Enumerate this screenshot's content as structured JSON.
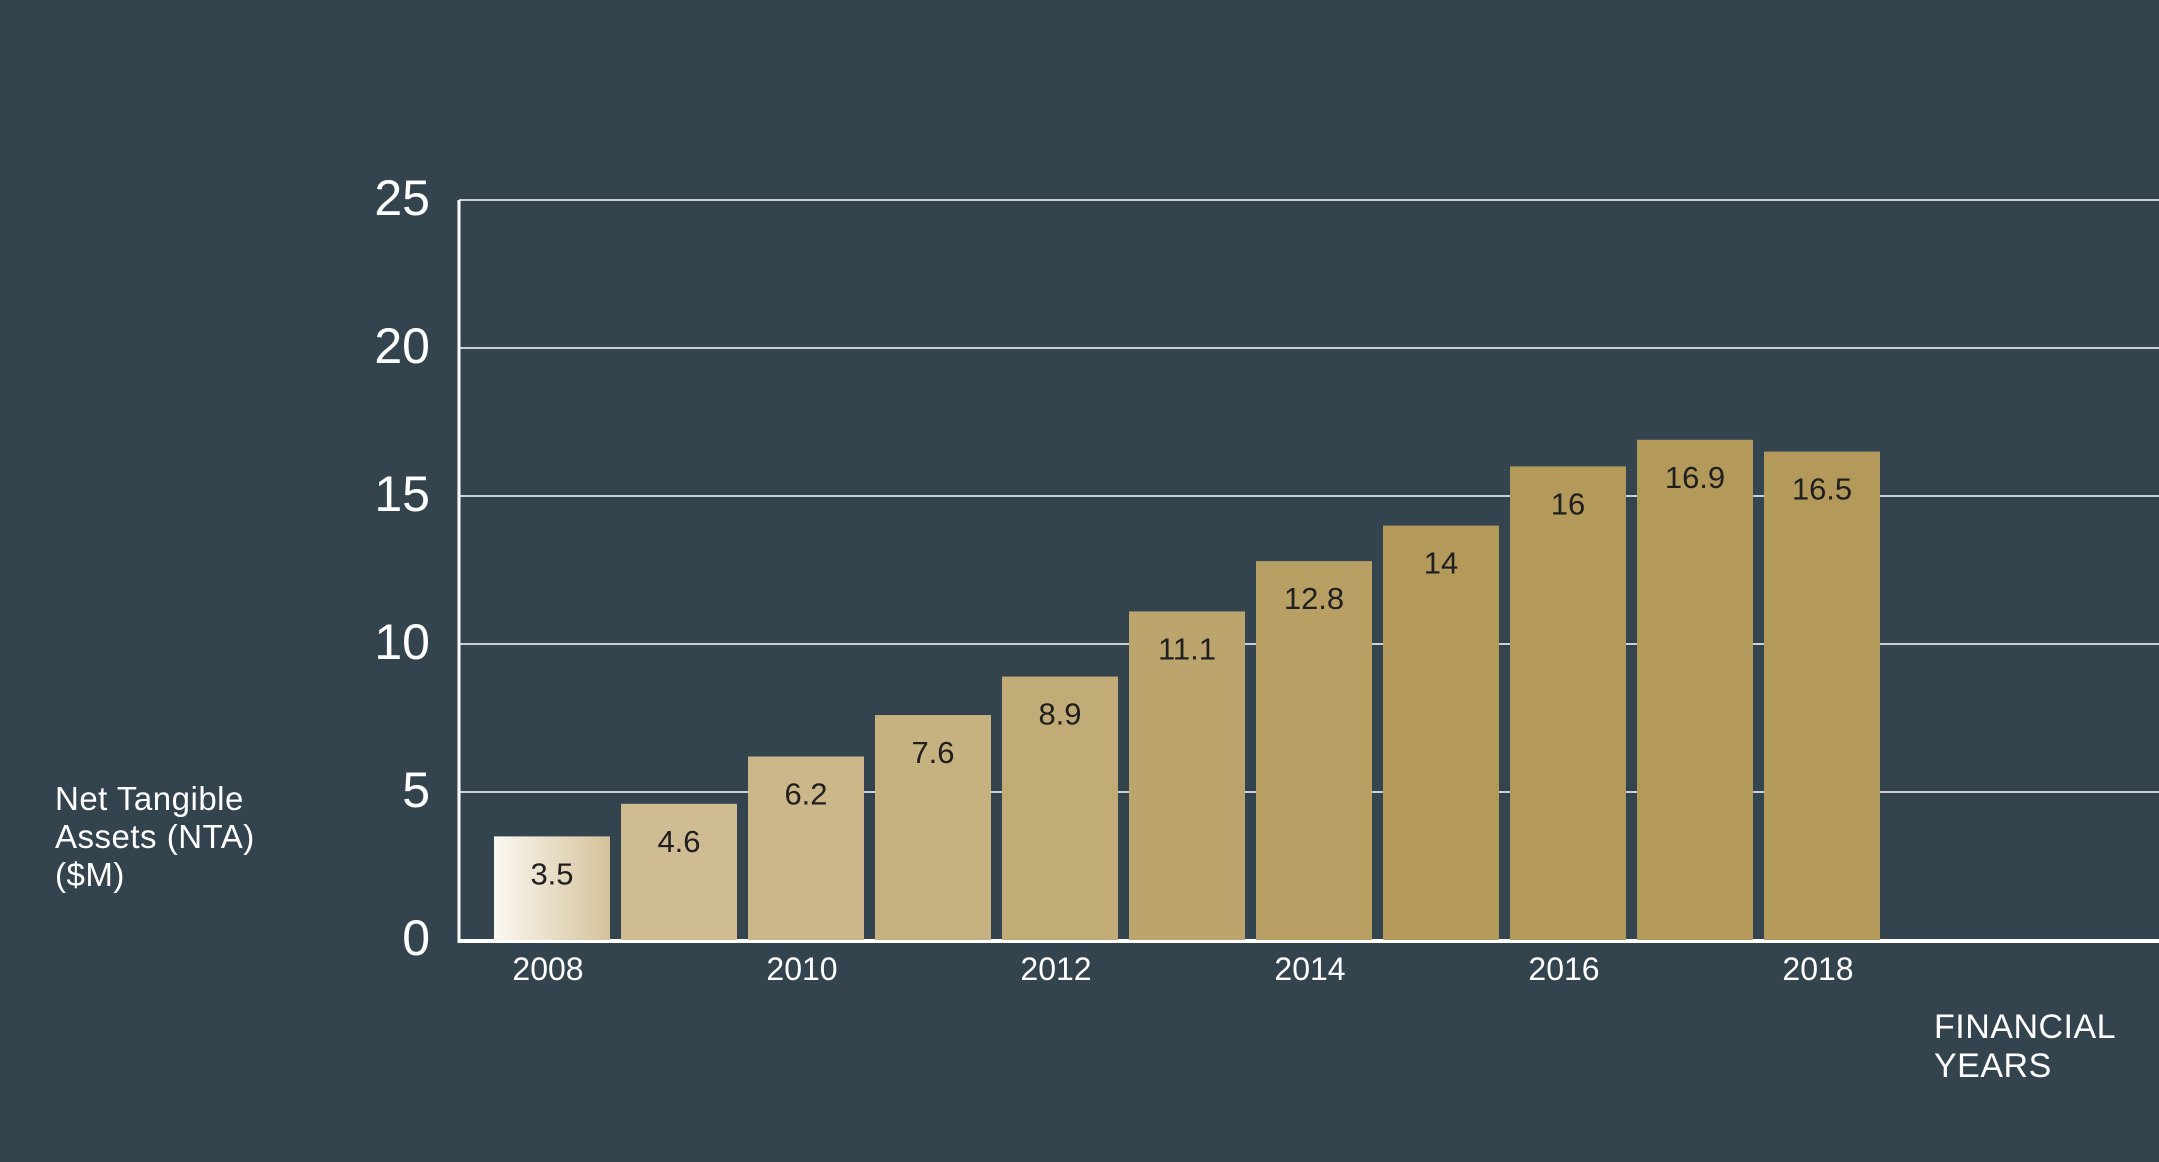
{
  "chart_data": {
    "type": "bar",
    "categories": [
      "2008",
      "2009",
      "2010",
      "2011",
      "2012",
      "2013",
      "2014",
      "2015",
      "2016",
      "2017",
      "2018"
    ],
    "values": [
      3.5,
      4.6,
      6.2,
      7.6,
      8.9,
      11.1,
      12.8,
      14,
      16,
      16.9,
      16.5
    ],
    "data_labels": [
      "3.5",
      "4.6",
      "6.2",
      "7.6",
      "8.9",
      "11.1",
      "12.8",
      "14",
      "16",
      "16.9",
      "16.5"
    ],
    "x_tick_labels": [
      "2008",
      "",
      "2010",
      "",
      "2012",
      "",
      "2014",
      "",
      "2016",
      "",
      "2018"
    ],
    "y_ticks": [
      0,
      5,
      10,
      15,
      20,
      25
    ],
    "ylim": [
      0,
      25
    ],
    "grid": true,
    "ylabel_lines": [
      "Net Tangible",
      "Assets (NTA)",
      "($M)"
    ],
    "xlabel_lines": [
      "FINANCIAL",
      "YEARS"
    ],
    "colors": {
      "background": "#34444f",
      "gridline": "#ffffff",
      "bar_gradient_start": "#fbf8f1",
      "bar_light": "#d4c29b",
      "bar_dark": "#b39a5b",
      "label_text": "#1f1f1f"
    }
  }
}
